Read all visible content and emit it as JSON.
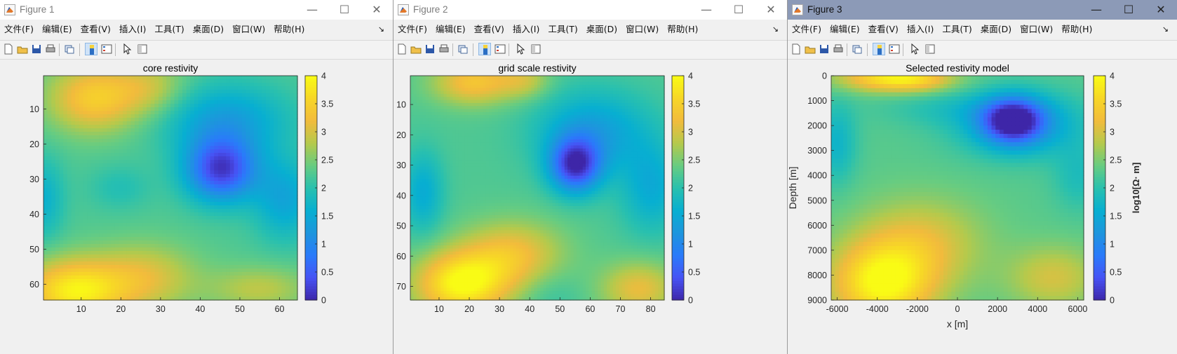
{
  "menu": [
    "文件(F)",
    "编辑(E)",
    "查看(V)",
    "插入(I)",
    "工具(T)",
    "桌面(D)",
    "窗口(W)",
    "帮助(H)"
  ],
  "menu_more": "↘",
  "window_controls": {
    "minimize": "—",
    "maximize": "☐",
    "close": "✕"
  },
  "toolbar_icons": [
    "new-figure-icon",
    "open-file-icon",
    "save-icon",
    "print-icon",
    "link-plot-icon",
    "colorbar-toggle-icon",
    "legend-toggle-icon",
    "pointer-icon",
    "property-editor-icon"
  ],
  "colormap": "parula",
  "windows": [
    {
      "title": "Figure 1",
      "active": false,
      "chart_data": {
        "type": "heatmap",
        "title": "core restivity",
        "xlabel": "",
        "ylabel": "",
        "xlim": [
          0.5,
          64.5
        ],
        "ylim": [
          0.5,
          64.5
        ],
        "y_reversed": true,
        "xticks": [
          "10",
          "20",
          "30",
          "40",
          "50",
          "60"
        ],
        "yticks": [
          "10",
          "20",
          "30",
          "40",
          "50",
          "60"
        ],
        "clim": [
          0,
          4
        ],
        "colorbar_ticks": [
          "0",
          "0.5",
          "1",
          "1.5",
          "2",
          "2.5",
          "3",
          "3.5",
          "4"
        ],
        "colorbar_label": ""
      }
    },
    {
      "title": "Figure 2",
      "active": false,
      "chart_data": {
        "type": "heatmap",
        "title": "grid scale restivity",
        "xlabel": "",
        "ylabel": "",
        "xlim": [
          0.5,
          84.5
        ],
        "ylim": [
          0.5,
          74.5
        ],
        "y_reversed": true,
        "xticks": [
          "10",
          "20",
          "30",
          "40",
          "50",
          "60",
          "70",
          "80"
        ],
        "yticks": [
          "10",
          "20",
          "30",
          "40",
          "50",
          "60",
          "70"
        ],
        "clim": [
          0,
          4
        ],
        "colorbar_ticks": [
          "0",
          "0.5",
          "1",
          "1.5",
          "2",
          "2.5",
          "3",
          "3.5",
          "4"
        ],
        "colorbar_label": ""
      }
    },
    {
      "title": "Figure 3",
      "active": true,
      "chart_data": {
        "type": "heatmap",
        "title": "Selected restivity model",
        "xlabel": "x [m]",
        "ylabel": "Depth [m]",
        "xlim": [
          -6300,
          6300
        ],
        "ylim": [
          0,
          9000
        ],
        "y_reversed": true,
        "xticks": [
          "-6000",
          "-4000",
          "-2000",
          "0",
          "2000",
          "4000",
          "6000"
        ],
        "yticks": [
          "0",
          "1000",
          "2000",
          "3000",
          "4000",
          "5000",
          "6000",
          "7000",
          "8000",
          "9000"
        ],
        "clim": [
          0,
          4
        ],
        "colorbar_ticks": [
          "0",
          "0.5",
          "1",
          "1.5",
          "2",
          "2.5",
          "3",
          "3.5",
          "4"
        ],
        "colorbar_label": "log10[Ω· m]"
      }
    }
  ]
}
